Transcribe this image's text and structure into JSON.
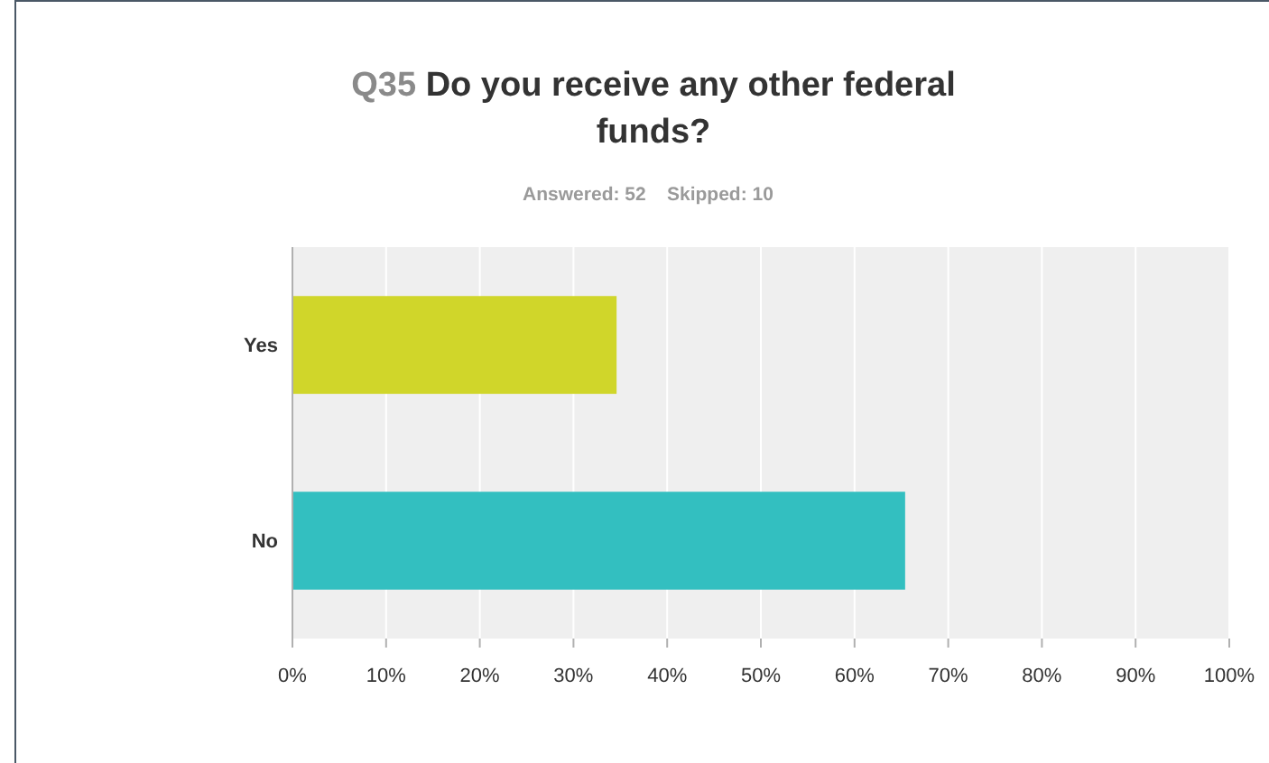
{
  "chart_data": {
    "type": "bar",
    "orientation": "horizontal",
    "title": "Q35 Do you receive any other federal funds?",
    "subtitle": "Answered: 52    Skipped: 10",
    "categories": [
      "Yes",
      "No"
    ],
    "values": [
      34.6,
      65.4
    ],
    "colors": [
      "#d0d62a",
      "#33bfc0"
    ],
    "xlim": [
      0,
      100
    ],
    "xticks": [
      {
        "value": 0,
        "label": "0%"
      },
      {
        "value": 10,
        "label": "10%"
      },
      {
        "value": 20,
        "label": "20%"
      },
      {
        "value": 30,
        "label": "30%"
      },
      {
        "value": 40,
        "label": "40%"
      },
      {
        "value": 50,
        "label": "50%"
      },
      {
        "value": 60,
        "label": "60%"
      },
      {
        "value": 70,
        "label": "70%"
      },
      {
        "value": 80,
        "label": "80%"
      },
      {
        "value": 90,
        "label": "90%"
      },
      {
        "value": 100,
        "label": "100%"
      }
    ],
    "grid": "x"
  }
}
